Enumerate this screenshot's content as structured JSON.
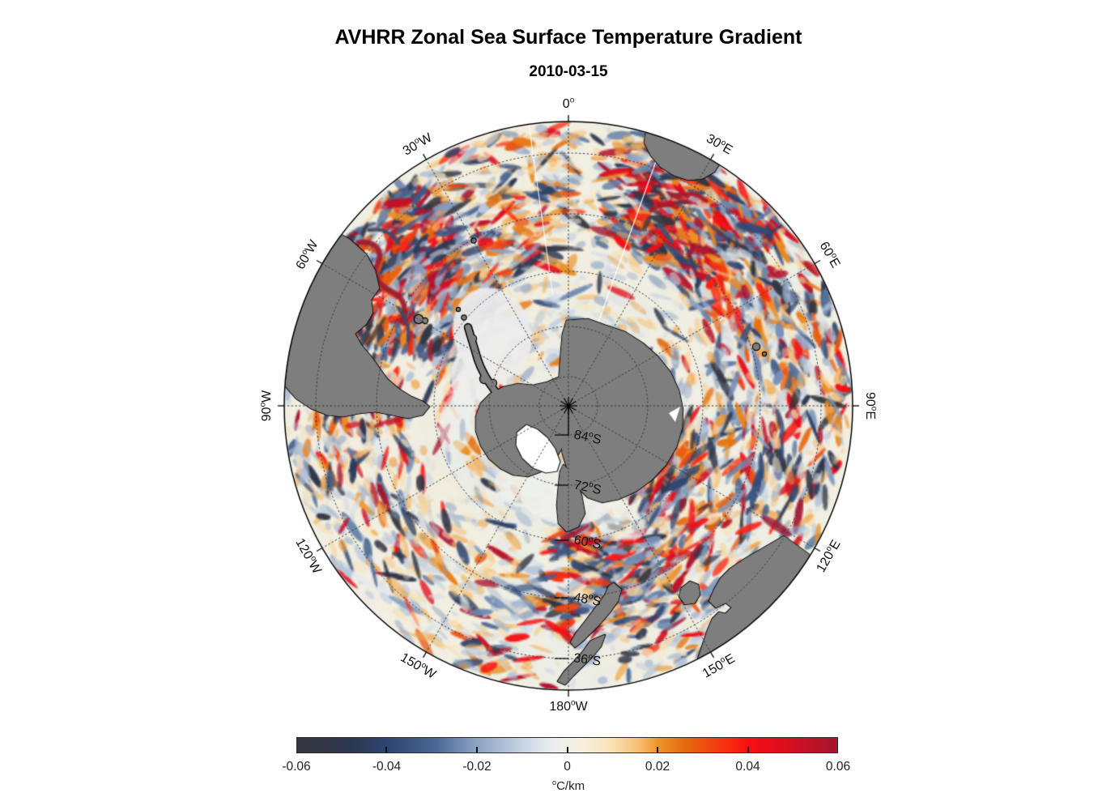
{
  "title": "AVHRR Zonal Sea Surface Temperature Gradient",
  "subtitle": "2010-03-15",
  "map": {
    "meridian_labels": [
      {
        "value": "0",
        "suffix": "",
        "azimuth_deg": 0
      },
      {
        "value": "30",
        "suffix": "E",
        "azimuth_deg": 30
      },
      {
        "value": "60",
        "suffix": "E",
        "azimuth_deg": 60
      },
      {
        "value": "90",
        "suffix": "E",
        "azimuth_deg": 90
      },
      {
        "value": "120",
        "suffix": "E",
        "azimuth_deg": 120
      },
      {
        "value": "150",
        "suffix": "E",
        "azimuth_deg": 150
      },
      {
        "value": "180",
        "suffix": "W",
        "azimuth_deg": 180
      },
      {
        "value": "150",
        "suffix": "W",
        "azimuth_deg": 210
      },
      {
        "value": "120",
        "suffix": "W",
        "azimuth_deg": 240
      },
      {
        "value": "90",
        "suffix": "W",
        "azimuth_deg": 270
      },
      {
        "value": "60",
        "suffix": "W",
        "azimuth_deg": 300
      },
      {
        "value": "30",
        "suffix": "W",
        "azimuth_deg": 330
      }
    ],
    "parallel_labels": [
      {
        "value": "84",
        "suffix": "S"
      },
      {
        "value": "72",
        "suffix": "S"
      },
      {
        "value": "60",
        "suffix": "S"
      },
      {
        "value": "48",
        "suffix": "S"
      },
      {
        "value": "36",
        "suffix": "S"
      }
    ],
    "land_color": "#7e7e7e",
    "ice_shelf_color": "#ffffff",
    "grid_color": "#3c3c3c"
  },
  "colorbar": {
    "tick_labels": [
      "-0.06",
      "-0.04",
      "-0.02",
      "0",
      "0.02",
      "0.04",
      "0.06"
    ],
    "unit_degree_prefix": "o",
    "unit": "C/km",
    "gradient_stops": [
      {
        "p": 0.0,
        "c": "#35363c"
      },
      {
        "p": 0.1,
        "c": "#2c3752"
      },
      {
        "p": 0.17,
        "c": "#2e4570"
      },
      {
        "p": 0.26,
        "c": "#4d6995"
      },
      {
        "p": 0.33,
        "c": "#8aa2c3"
      },
      {
        "p": 0.42,
        "c": "#c9d4e4"
      },
      {
        "p": 0.47,
        "c": "#e9edee"
      },
      {
        "p": 0.5,
        "c": "#f2f0e6"
      },
      {
        "p": 0.53,
        "c": "#f8eeda"
      },
      {
        "p": 0.58,
        "c": "#f9e3b8"
      },
      {
        "p": 0.63,
        "c": "#f6c178"
      },
      {
        "p": 0.67,
        "c": "#ee9226"
      },
      {
        "p": 0.72,
        "c": "#e4690f"
      },
      {
        "p": 0.76,
        "c": "#ee4a10"
      },
      {
        "p": 0.81,
        "c": "#fa2410"
      },
      {
        "p": 0.835,
        "c": "#f60f14"
      },
      {
        "p": 0.88,
        "c": "#e60e1b"
      },
      {
        "p": 0.93,
        "c": "#cb1023"
      },
      {
        "p": 1.0,
        "c": "#a2152f"
      }
    ]
  },
  "chart_data": {
    "type": "heatmap",
    "title": "AVHRR Zonal Sea Surface Temperature Gradient",
    "subtitle": "2010-03-15",
    "projection": "south polar azimuthal view centered on Antarctica",
    "field": "zonal sea surface temperature gradient from AVHRR satellite data; near-zero pale values over most of the ocean with strong alternating positive (red/orange) and negative (blue/navy) filaments along the Antarctic Circumpolar Current, the Agulhas Return Current southeast of Africa, and the Brazil-Malvinas Confluence east of South America; pale gray (sea-ice / no-data) zone fringing Antarctica",
    "value_range": [
      -0.06,
      0.06
    ],
    "colorbar": {
      "label": "oC/km",
      "ticks": [
        -0.06,
        -0.04,
        -0.02,
        0,
        0.02,
        0.04,
        0.06
      ],
      "orientation": "horizontal",
      "palette": "diverging: dark slate-gray / navy / blue for negative, cream-white near zero, orange / red / dark crimson for positive"
    },
    "meridian_gridlines": [
      "0",
      "30E",
      "60E",
      "90E",
      "120E",
      "150E",
      "180W",
      "150W",
      "120W",
      "90W",
      "60W",
      "30W"
    ],
    "parallel_gridlines": [
      "84S",
      "72S",
      "60S",
      "48S",
      "36S"
    ],
    "grid_style": "dotted polar graticule with outer solid circle, pole marked by converging meridians",
    "land_masses_visible": [
      "Antarctica (center, with white Ross Ice Shelf and Antarctic Peninsula)",
      "southern South America with Falkland Islands (upper left)",
      "southern Africa (upper right)",
      "Kerguelen Islands (right)",
      "southeastern Australia with Tasmania (lower right)",
      "New Zealand (bottom center)"
    ]
  }
}
